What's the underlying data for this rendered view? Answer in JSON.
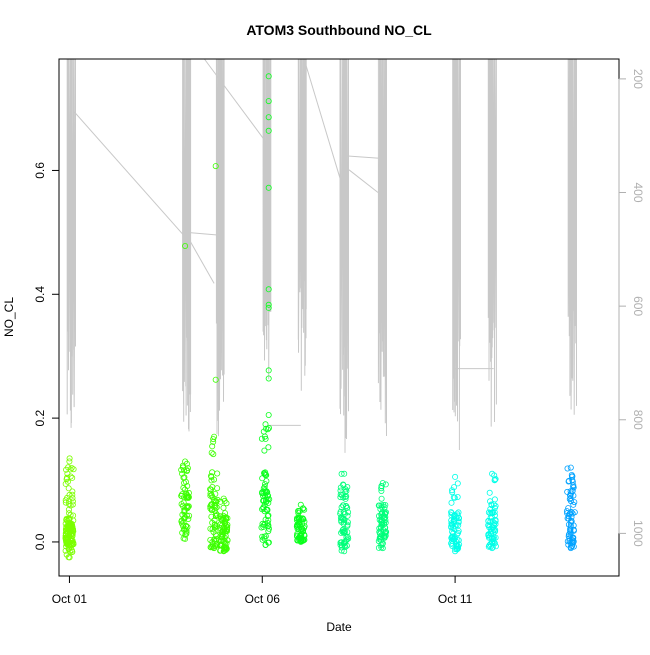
{
  "chart_data": {
    "type": "scatter",
    "title": "ATOM3 Southbound NO_CL",
    "xlabel": "Date",
    "ylabel": "NO_CL",
    "x_unit": "days",
    "xlim": [
      "2023-09-30T17:30",
      "2023-10-15T06:00"
    ],
    "ylim": [
      -0.055,
      0.78
    ],
    "x_ticks": [
      {
        "label": "Oct 01",
        "value": "2023-10-01T00:00"
      },
      {
        "label": "Oct 06",
        "value": "2023-10-06T00:00"
      },
      {
        "label": "Oct 11",
        "value": "2023-10-11T00:00"
      }
    ],
    "y_ticks": [
      0.0,
      0.2,
      0.4,
      0.6
    ],
    "y_tick_labels": [
      "0.0",
      "0.2",
      "0.4",
      "0.6"
    ],
    "right_axis": {
      "color": "#b0b0b0",
      "reversed": true,
      "ylim": [
        1075,
        165
      ],
      "ticks": [
        200,
        400,
        600,
        800,
        1000
      ],
      "tick_labels": [
        "200",
        "400",
        "600",
        "800",
        "1000"
      ]
    },
    "grid": false,
    "legend": "none",
    "point_style": "open circle",
    "series": [
      {
        "color": "#7cff00",
        "clusters": [
          {
            "x": "2023-10-01T00:00",
            "y_low": -0.005,
            "y_high": 0.13,
            "dense_top": 0.03
          },
          {
            "x": "2023-10-01T00:05",
            "y_low": -0.025,
            "y_high": 0.135,
            "dense_top": 0.04
          }
        ]
      },
      {
        "color": "#3cff00",
        "clusters": [
          {
            "x": "2023-10-04T00:00",
            "y_low": 0.005,
            "y_high": 0.13,
            "dense_top": 0.08
          },
          {
            "x": "2023-10-04T18:00",
            "y_low": -0.01,
            "y_high": 0.17,
            "dense_top": 0.12
          },
          {
            "x": "2023-10-05T00:00",
            "y_low": -0.015,
            "y_high": 0.07,
            "dense_top": 0.04
          }
        ],
        "outliers": [
          {
            "x": "2023-10-04T00:00",
            "y": 0.478
          },
          {
            "x": "2023-10-04T19:00",
            "y": 0.607
          },
          {
            "x": "2023-10-04T19:00",
            "y": 0.262
          }
        ]
      },
      {
        "color": "#0aff1c",
        "clusters": [
          {
            "x": "2023-10-06T02:00",
            "y_low": -0.005,
            "y_high": 0.19,
            "dense_top": 0.12
          },
          {
            "x": "2023-10-07T00:00",
            "y_low": 0.0,
            "y_high": 0.06,
            "dense_top": 0.04
          }
        ],
        "outliers": [
          {
            "x": "2023-10-06T04:00",
            "y": 0.752
          },
          {
            "x": "2023-10-06T04:00",
            "y": 0.712
          },
          {
            "x": "2023-10-06T04:00",
            "y": 0.686
          },
          {
            "x": "2023-10-06T04:00",
            "y": 0.664
          },
          {
            "x": "2023-10-06T04:00",
            "y": 0.572
          },
          {
            "x": "2023-10-06T04:00",
            "y": 0.408
          },
          {
            "x": "2023-10-06T04:00",
            "y": 0.383
          },
          {
            "x": "2023-10-06T04:00",
            "y": 0.378
          },
          {
            "x": "2023-10-06T04:00",
            "y": 0.277
          },
          {
            "x": "2023-10-06T04:00",
            "y": 0.264
          },
          {
            "x": "2023-10-06T04:00",
            "y": 0.205
          }
        ]
      },
      {
        "color": "#00ff7a",
        "clusters": [
          {
            "x": "2023-10-08T03:00",
            "y_low": -0.015,
            "y_high": 0.11,
            "dense_top": 0.06
          },
          {
            "x": "2023-10-09T03:00",
            "y_low": -0.01,
            "y_high": 0.095,
            "dense_top": 0.06
          }
        ]
      },
      {
        "color": "#00ffe8",
        "clusters": [
          {
            "x": "2023-10-11T00:00",
            "y_low": -0.015,
            "y_high": 0.105,
            "dense_top": 0.05
          },
          {
            "x": "2023-10-11T23:00",
            "y_low": -0.01,
            "y_high": 0.11,
            "dense_top": 0.05
          }
        ]
      },
      {
        "color": "#00a2ff",
        "clusters": [
          {
            "x": "2023-10-14T00:00",
            "y_low": -0.01,
            "y_high": 0.12,
            "dense_top": 0.1
          }
        ]
      }
    ],
    "overlay_line": {
      "color": "#c8c8c8",
      "axis": "right",
      "bursts": [
        {
          "x": "2023-10-01T00:00",
          "low": 855
        },
        {
          "x": "2023-10-04T00:00",
          "low": 840
        },
        {
          "x": "2023-10-04T21:00",
          "low": 830
        },
        {
          "x": "2023-10-06T02:00",
          "low": 780
        },
        {
          "x": "2023-10-07T00:00",
          "low": 750
        },
        {
          "x": "2023-10-08T02:00",
          "low": 860
        },
        {
          "x": "2023-10-09T02:00",
          "low": 835
        },
        {
          "x": "2023-10-11T00:00",
          "low": 860
        },
        {
          "x": "2023-10-11T22:00",
          "low": 830
        },
        {
          "x": "2023-10-14T00:00",
          "low": 800
        }
      ],
      "connectors": [
        {
          "x": [
            "2023-10-01T02:00",
            "2023-10-03T23:00"
          ],
          "y": [
            255,
            475
          ]
        },
        {
          "x": [
            "2023-10-04T00:00",
            "2023-10-04T18:00"
          ],
          "y": [
            470,
            560
          ]
        },
        {
          "x": [
            "2023-10-04T00:00",
            "2023-10-04T21:00"
          ],
          "y": [
            470,
            475
          ]
        },
        {
          "x": [
            "2023-10-04T12:00",
            "2023-10-06T02:00"
          ],
          "y": [
            165,
            310
          ]
        },
        {
          "x": [
            "2023-10-07T02:00",
            "2023-10-08T02:00"
          ],
          "y": [
            165,
            390
          ]
        },
        {
          "x": [
            "2023-10-08T02:00",
            "2023-10-09T02:00"
          ],
          "y": [
            335,
            340
          ]
        },
        {
          "x": [
            "2023-10-08T06:00",
            "2023-10-09T00:00"
          ],
          "y": [
            360,
            400
          ]
        },
        {
          "x": [
            "2023-10-06T04:00",
            "2023-10-07T00:00"
          ],
          "y": [
            810,
            810
          ]
        },
        {
          "x": [
            "2023-10-11T00:00",
            "2023-10-12T00:00"
          ],
          "y": [
            710,
            710
          ]
        }
      ]
    }
  }
}
